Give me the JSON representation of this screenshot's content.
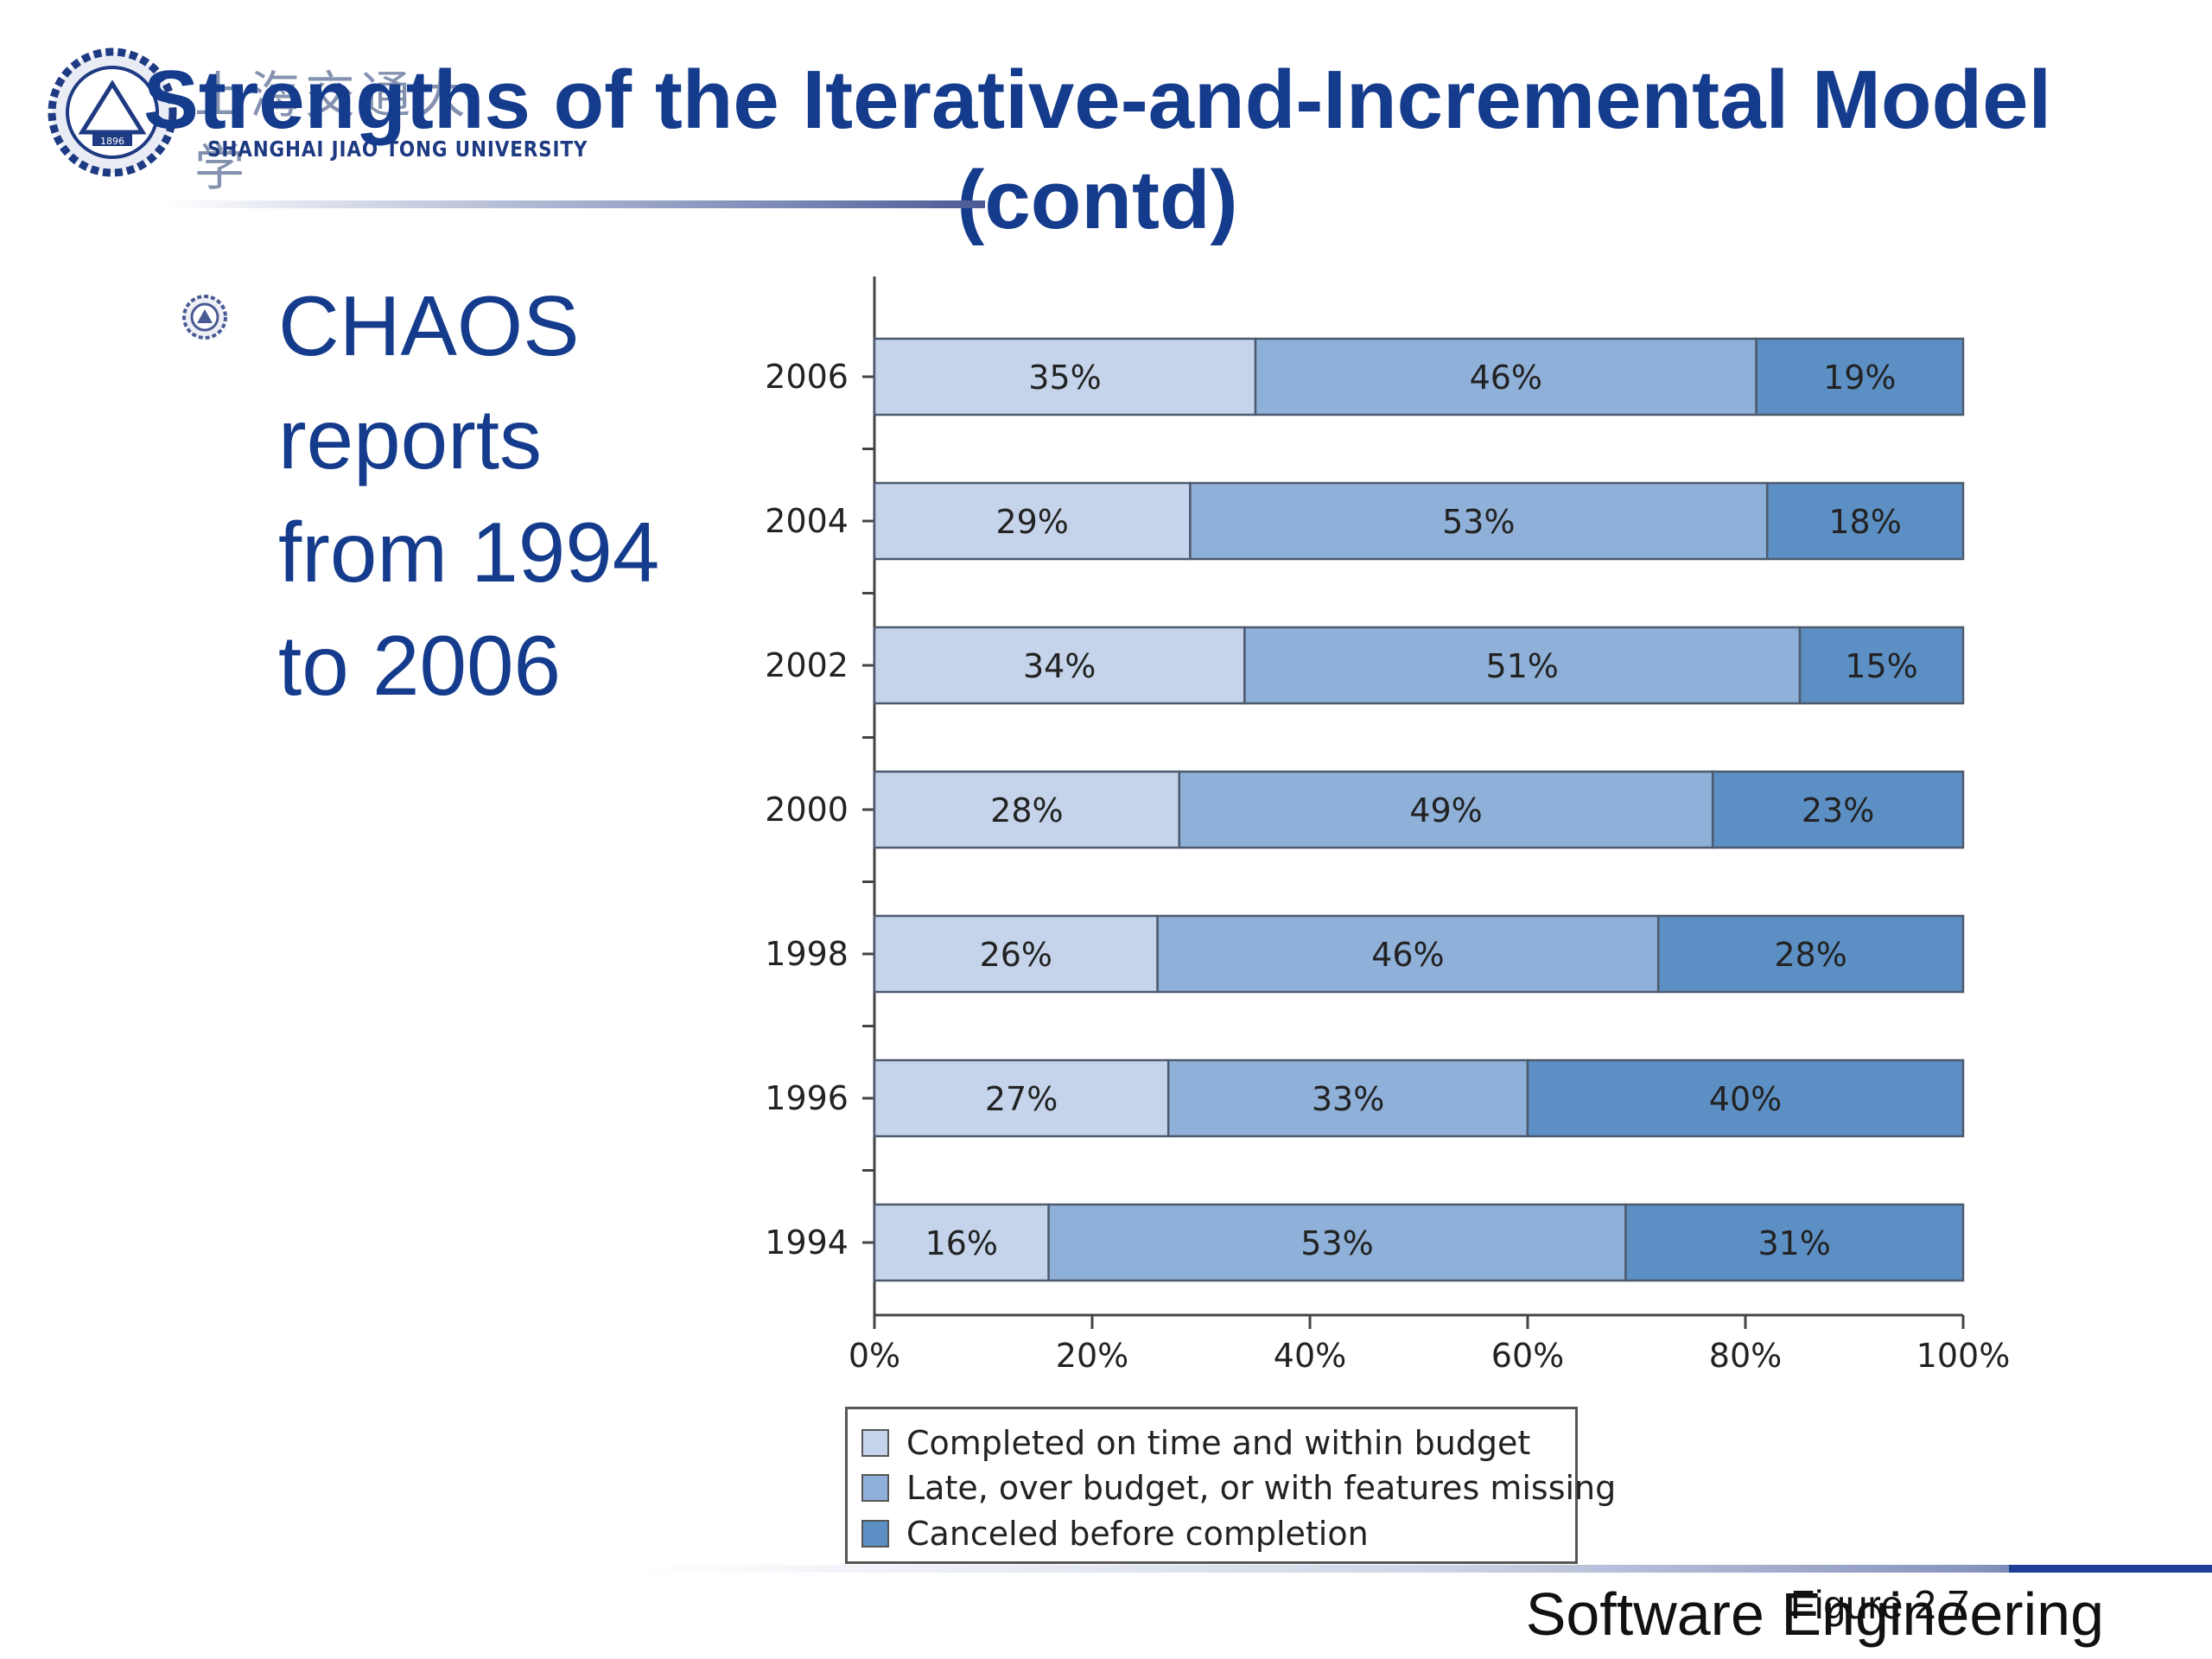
{
  "slide": {
    "title": "Strengths of the Iterative-and-Incremental Model (contd)",
    "bullet": "CHAOS reports from 1994 to 2006",
    "footer": "Software Engineering",
    "figure_label": "Figure 2.7",
    "logo": {
      "university": "SHANGHAI  JIAO TONG  UNIVERSITY",
      "chinese": "上海交通大学",
      "seal_text": "1896"
    }
  },
  "colors": {
    "title": "#143b8c",
    "completed": "#c5d4ea",
    "late": "#8fb0d8",
    "canceled": "#5c8fc4"
  },
  "chart_data": {
    "type": "bar",
    "orientation": "horizontal",
    "stacked": true,
    "categories": [
      "2006",
      "2004",
      "2002",
      "2000",
      "1998",
      "1996",
      "1994"
    ],
    "series": [
      {
        "name": "Completed on time and within budget",
        "values": [
          35,
          29,
          34,
          28,
          26,
          27,
          16
        ]
      },
      {
        "name": "Late, over budget, or with features missing",
        "values": [
          46,
          53,
          51,
          49,
          46,
          33,
          53
        ]
      },
      {
        "name": "Canceled before completion",
        "values": [
          19,
          18,
          15,
          23,
          28,
          40,
          31
        ]
      }
    ],
    "xticks": [
      "0%",
      "20%",
      "40%",
      "60%",
      "80%",
      "100%"
    ],
    "xlim": [
      0,
      100
    ],
    "legend_position": "bottom"
  }
}
